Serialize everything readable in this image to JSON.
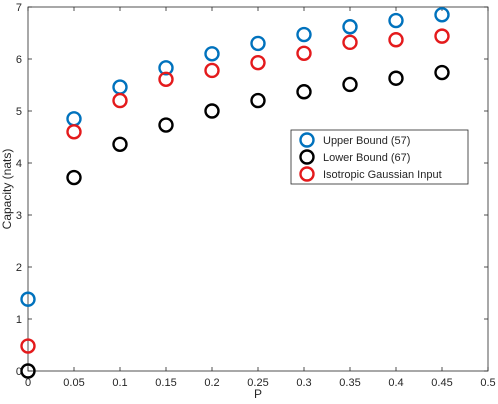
{
  "chart_data": {
    "type": "scatter",
    "xlabel": "P",
    "ylabel": "Capacity (nats)",
    "xlim": [
      0,
      0.5
    ],
    "ylim": [
      0,
      7
    ],
    "xticks": [
      "0",
      "0.05",
      "0.1",
      "0.15",
      "0.2",
      "0.25",
      "0.3",
      "0.35",
      "0.4",
      "0.45",
      "0.5"
    ],
    "yticks": [
      "0",
      "1",
      "2",
      "3",
      "4",
      "5",
      "6",
      "7"
    ],
    "legend_position": "right",
    "grid": false,
    "x": [
      0,
      0.05,
      0.1,
      0.15,
      0.2,
      0.25,
      0.3,
      0.35,
      0.4,
      0.45
    ],
    "series": [
      {
        "name": "Upper Bound (57)",
        "color": "#0072BD",
        "marker": "open-circle",
        "values": [
          1.38,
          4.85,
          5.46,
          5.83,
          6.1,
          6.3,
          6.47,
          6.62,
          6.74,
          6.85
        ]
      },
      {
        "name": "Lower Bound (67)",
        "color": "#000000",
        "marker": "open-circle",
        "values": [
          0.0,
          3.72,
          4.36,
          4.73,
          5.0,
          5.2,
          5.37,
          5.51,
          5.63,
          5.74
        ]
      },
      {
        "name": "Isotropic Gaussian Input",
        "color": "#E41A1C",
        "marker": "open-circle",
        "values": [
          0.48,
          4.6,
          5.2,
          5.61,
          5.78,
          5.93,
          6.11,
          6.32,
          6.37,
          6.44
        ]
      }
    ]
  }
}
